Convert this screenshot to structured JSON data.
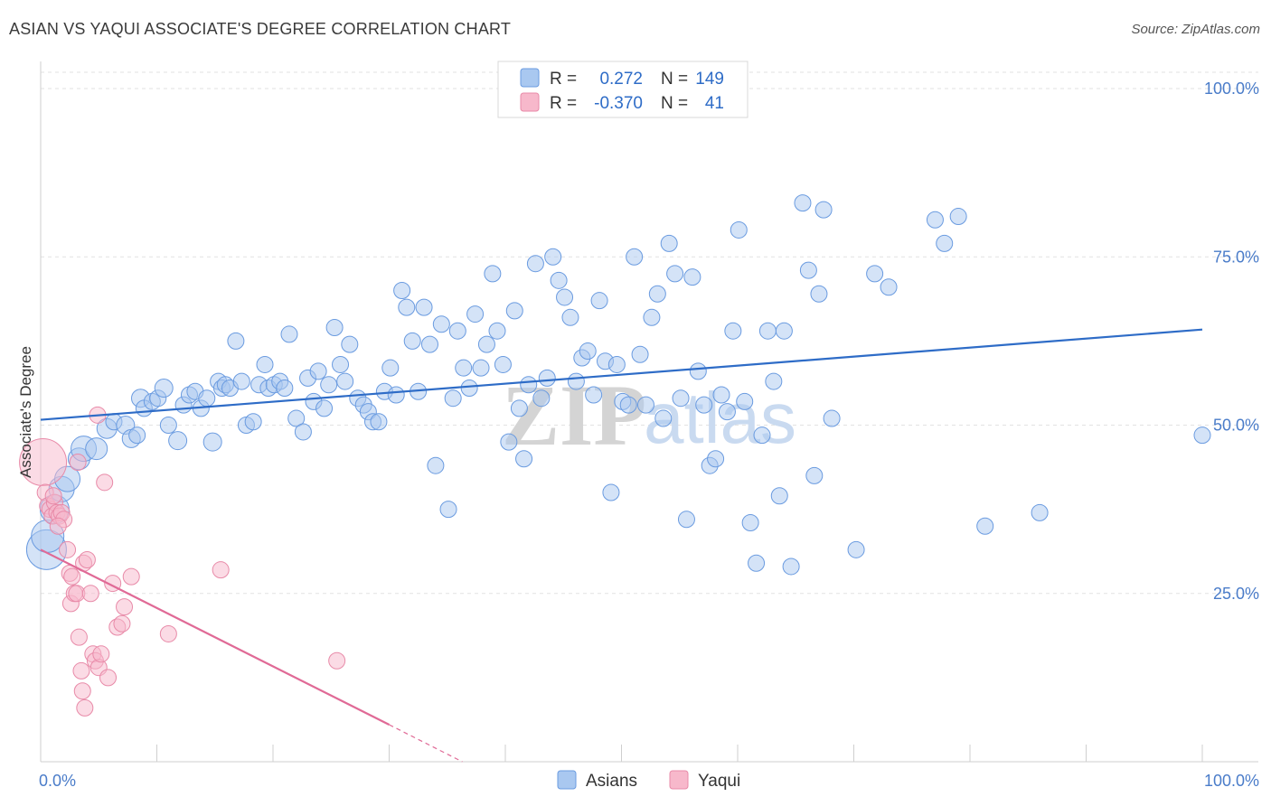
{
  "title": "ASIAN VS YAQUI ASSOCIATE'S DEGREE CORRELATION CHART",
  "source": "Source: ZipAtlas.com",
  "watermark": {
    "zip": "ZIP",
    "atlas": "atlas"
  },
  "legend": {
    "rows": [
      {
        "r_label": "R =",
        "r_value": "0.272",
        "n_label": "N =",
        "n_value": "149",
        "color": "#a9c8f0",
        "stroke": "#6a9be0"
      },
      {
        "r_label": "R =",
        "r_value": "-0.370",
        "n_label": "N =",
        "n_value": "41",
        "color": "#f7b8cb",
        "stroke": "#e88aa8"
      }
    ]
  },
  "bottom_legend": [
    {
      "label": "Asians",
      "color": "#a9c8f0",
      "stroke": "#6a9be0"
    },
    {
      "label": "Yaqui",
      "color": "#f7b8cb",
      "stroke": "#e88aa8"
    }
  ],
  "chart_data": {
    "type": "scatter",
    "title": "ASIAN VS YAQUI ASSOCIATE'S DEGREE CORRELATION CHART",
    "xlabel": "",
    "ylabel": "Associate's Degree",
    "xlim": [
      0,
      100
    ],
    "ylim": [
      0,
      100
    ],
    "x_tick_labels": [
      {
        "value": 0,
        "label": "0.0%"
      },
      {
        "value": 100,
        "label": "100.0%"
      }
    ],
    "y_tick_labels": [
      {
        "value": 25,
        "label": "25.0%"
      },
      {
        "value": 50,
        "label": "50.0%"
      },
      {
        "value": 75,
        "label": "75.0%"
      },
      {
        "value": 100,
        "label": "100.0%"
      }
    ],
    "grid": true,
    "legend_position": "top-center",
    "series": [
      {
        "name": "Asians",
        "color": "#a9c8f0",
        "stroke": "#6a9be0",
        "trend": {
          "x": [
            0,
            100
          ],
          "y": [
            50.8,
            64.2
          ],
          "color": "#2e6cc7"
        },
        "points": [
          [
            0.5,
            31.5,
            22
          ],
          [
            0.6,
            33.5,
            18
          ],
          [
            1.2,
            37.5,
            16
          ],
          [
            1.8,
            40.5,
            14
          ],
          [
            2.3,
            42.0,
            14
          ],
          [
            3.3,
            45.0,
            12
          ],
          [
            3.7,
            46.5,
            14
          ],
          [
            4.8,
            46.5,
            12
          ],
          [
            5.7,
            49.5,
            11
          ],
          [
            6.3,
            50.5,
            9
          ],
          [
            7.3,
            50.0,
            10
          ],
          [
            7.8,
            48.0,
            10
          ],
          [
            8.3,
            48.5,
            9
          ],
          [
            8.6,
            54.0,
            10
          ],
          [
            8.9,
            52.5,
            9
          ],
          [
            9.6,
            53.5,
            9
          ],
          [
            10.1,
            54.0,
            9
          ],
          [
            10.6,
            55.5,
            10
          ],
          [
            11.0,
            50.0,
            9
          ],
          [
            11.8,
            47.7,
            10
          ],
          [
            12.3,
            53.0,
            9
          ],
          [
            12.8,
            54.5,
            9
          ],
          [
            13.3,
            55.0,
            9
          ],
          [
            13.8,
            52.5,
            9
          ],
          [
            14.3,
            54.0,
            9
          ],
          [
            14.8,
            47.5,
            10
          ],
          [
            15.3,
            56.5,
            9
          ],
          [
            15.6,
            55.5,
            9
          ],
          [
            15.9,
            56.0,
            9
          ],
          [
            16.3,
            55.5,
            9
          ],
          [
            16.8,
            62.5,
            9
          ],
          [
            17.3,
            56.5,
            9
          ],
          [
            17.7,
            50.0,
            9
          ],
          [
            18.3,
            50.5,
            9
          ],
          [
            18.8,
            56.0,
            9
          ],
          [
            19.3,
            59.0,
            9
          ],
          [
            19.6,
            55.5,
            9
          ],
          [
            20.1,
            56.0,
            9
          ],
          [
            20.6,
            56.5,
            9
          ],
          [
            21.0,
            55.5,
            9
          ],
          [
            21.4,
            63.5,
            9
          ],
          [
            22.0,
            51.0,
            9
          ],
          [
            22.6,
            49.0,
            9
          ],
          [
            23.0,
            57.0,
            9
          ],
          [
            23.5,
            53.5,
            9
          ],
          [
            23.9,
            58.0,
            9
          ],
          [
            24.4,
            52.5,
            9
          ],
          [
            24.8,
            56.0,
            9
          ],
          [
            25.3,
            64.5,
            9
          ],
          [
            25.8,
            59.0,
            9
          ],
          [
            26.2,
            56.5,
            9
          ],
          [
            26.6,
            62.0,
            9
          ],
          [
            27.3,
            54.0,
            9
          ],
          [
            27.8,
            53.0,
            9
          ],
          [
            28.2,
            52.0,
            9
          ],
          [
            28.6,
            50.5,
            9
          ],
          [
            29.1,
            50.5,
            9
          ],
          [
            29.6,
            55.0,
            9
          ],
          [
            30.1,
            58.5,
            9
          ],
          [
            30.6,
            54.5,
            9
          ],
          [
            31.1,
            70.0,
            9
          ],
          [
            31.5,
            67.5,
            9
          ],
          [
            32.0,
            62.5,
            9
          ],
          [
            32.5,
            55.0,
            9
          ],
          [
            33.0,
            67.5,
            9
          ],
          [
            33.5,
            62.0,
            9
          ],
          [
            34.0,
            44.0,
            9
          ],
          [
            34.5,
            65.0,
            9
          ],
          [
            35.1,
            37.5,
            9
          ],
          [
            35.5,
            54.0,
            9
          ],
          [
            35.9,
            64.0,
            9
          ],
          [
            36.4,
            58.5,
            9
          ],
          [
            36.9,
            55.5,
            9
          ],
          [
            37.4,
            66.5,
            9
          ],
          [
            37.9,
            58.5,
            9
          ],
          [
            38.4,
            62.0,
            9
          ],
          [
            38.9,
            72.5,
            9
          ],
          [
            39.3,
            64.0,
            9
          ],
          [
            39.8,
            59.0,
            9
          ],
          [
            40.3,
            47.5,
            9
          ],
          [
            40.8,
            67.0,
            9
          ],
          [
            41.2,
            52.5,
            9
          ],
          [
            41.6,
            45.0,
            9
          ],
          [
            42.0,
            56.0,
            9
          ],
          [
            42.6,
            74.0,
            9
          ],
          [
            43.1,
            54.0,
            9
          ],
          [
            43.6,
            57.0,
            9
          ],
          [
            44.1,
            75.0,
            9
          ],
          [
            44.6,
            71.5,
            9
          ],
          [
            45.1,
            69.0,
            9
          ],
          [
            45.6,
            66.0,
            9
          ],
          [
            46.1,
            56.5,
            9
          ],
          [
            46.6,
            60.0,
            9
          ],
          [
            47.1,
            61.0,
            9
          ],
          [
            47.6,
            54.5,
            9
          ],
          [
            48.1,
            68.5,
            9
          ],
          [
            48.6,
            59.5,
            9
          ],
          [
            49.1,
            40.0,
            9
          ],
          [
            49.6,
            59.0,
            9
          ],
          [
            50.1,
            53.5,
            9
          ],
          [
            50.6,
            53.0,
            9
          ],
          [
            51.1,
            75.0,
            9
          ],
          [
            51.6,
            60.5,
            9
          ],
          [
            52.1,
            53.0,
            9
          ],
          [
            52.6,
            66.0,
            9
          ],
          [
            53.1,
            69.5,
            9
          ],
          [
            53.6,
            51.0,
            9
          ],
          [
            54.1,
            77.0,
            9
          ],
          [
            54.6,
            72.5,
            9
          ],
          [
            55.1,
            54.0,
            9
          ],
          [
            55.6,
            36.0,
            9
          ],
          [
            56.1,
            72.0,
            9
          ],
          [
            56.6,
            58.0,
            9
          ],
          [
            57.1,
            53.0,
            9
          ],
          [
            57.6,
            44.0,
            9
          ],
          [
            58.1,
            45.0,
            9
          ],
          [
            58.6,
            54.5,
            9
          ],
          [
            59.1,
            52.0,
            9
          ],
          [
            59.6,
            64.0,
            9
          ],
          [
            60.1,
            79.0,
            9
          ],
          [
            60.6,
            53.5,
            9
          ],
          [
            61.1,
            35.5,
            9
          ],
          [
            61.6,
            29.5,
            9
          ],
          [
            62.1,
            48.5,
            9
          ],
          [
            62.6,
            64.0,
            9
          ],
          [
            63.1,
            56.5,
            9
          ],
          [
            63.6,
            39.5,
            9
          ],
          [
            64.0,
            64.0,
            9
          ],
          [
            64.6,
            29.0,
            9
          ],
          [
            65.6,
            83.0,
            9
          ],
          [
            66.1,
            73.0,
            9
          ],
          [
            66.6,
            42.5,
            9
          ],
          [
            67.0,
            69.5,
            9
          ],
          [
            67.4,
            82.0,
            9
          ],
          [
            68.1,
            51.0,
            9
          ],
          [
            70.2,
            31.5,
            9
          ],
          [
            71.8,
            72.5,
            9
          ],
          [
            73.0,
            70.5,
            9
          ],
          [
            77.0,
            80.5,
            9
          ],
          [
            77.8,
            77.0,
            9
          ],
          [
            79.0,
            81.0,
            9
          ],
          [
            81.3,
            35.0,
            9
          ],
          [
            86.0,
            37.0,
            9
          ],
          [
            100.0,
            48.5,
            9
          ]
        ]
      },
      {
        "name": "Yaqui",
        "color": "#f7b8cb",
        "stroke": "#e88aa8",
        "trend": {
          "x": [
            0,
            30
          ],
          "y": [
            31.5,
            5.5
          ],
          "dash_to": {
            "x": 36.3,
            "y": 0
          },
          "color": "#e06a96"
        },
        "points": [
          [
            0.2,
            44.5,
            26
          ],
          [
            0.4,
            40.0,
            9
          ],
          [
            0.6,
            38.0,
            9
          ],
          [
            0.8,
            37.5,
            9
          ],
          [
            1.0,
            36.5,
            9
          ],
          [
            1.2,
            38.5,
            9
          ],
          [
            1.4,
            37.0,
            9
          ],
          [
            1.6,
            36.5,
            9
          ],
          [
            1.8,
            37.0,
            9
          ],
          [
            2.0,
            36.0,
            9
          ],
          [
            2.3,
            31.5,
            9
          ],
          [
            2.5,
            28.0,
            9
          ],
          [
            2.6,
            23.5,
            9
          ],
          [
            2.7,
            27.5,
            9
          ],
          [
            2.9,
            25.0,
            9
          ],
          [
            3.1,
            25.0,
            9
          ],
          [
            3.2,
            44.5,
            9
          ],
          [
            3.3,
            18.5,
            9
          ],
          [
            3.5,
            13.5,
            9
          ],
          [
            3.6,
            10.5,
            9
          ],
          [
            3.7,
            29.5,
            9
          ],
          [
            3.8,
            8.0,
            9
          ],
          [
            4.0,
            30.0,
            9
          ],
          [
            4.3,
            25.0,
            9
          ],
          [
            4.5,
            16.0,
            9
          ],
          [
            4.7,
            15.0,
            9
          ],
          [
            4.9,
            51.5,
            9
          ],
          [
            5.0,
            14.0,
            9
          ],
          [
            5.2,
            16.0,
            9
          ],
          [
            5.5,
            41.5,
            9
          ],
          [
            5.8,
            12.5,
            9
          ],
          [
            6.2,
            26.5,
            9
          ],
          [
            6.6,
            20.0,
            9
          ],
          [
            7.0,
            20.5,
            9
          ],
          [
            7.2,
            23.0,
            9
          ],
          [
            7.8,
            27.5,
            9
          ],
          [
            11.0,
            19.0,
            9
          ],
          [
            15.5,
            28.5,
            9
          ],
          [
            25.5,
            15.0,
            9
          ],
          [
            1.1,
            39.5,
            9
          ],
          [
            1.5,
            35.0,
            9
          ]
        ]
      }
    ]
  }
}
